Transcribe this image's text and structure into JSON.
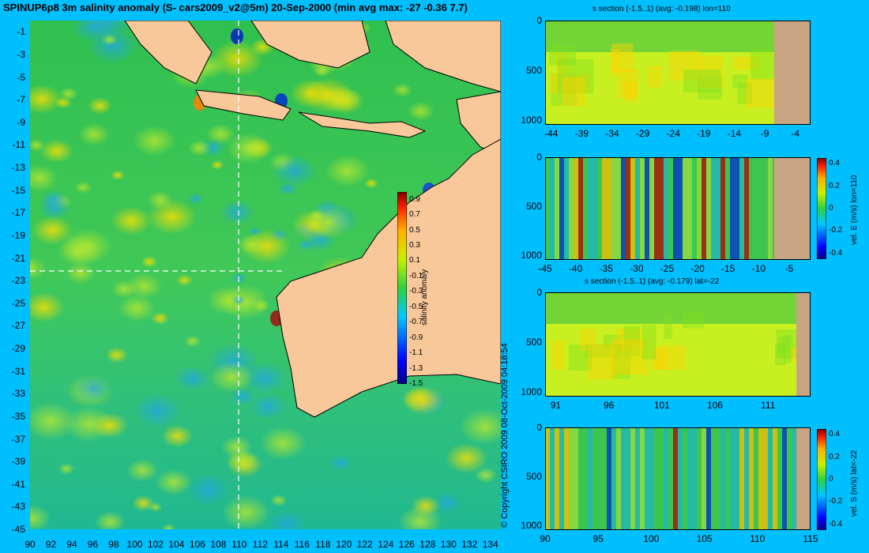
{
  "title": "SPINUP6p8 3m salinity anomaly (S- cars2009_v2@5m) 20-Sep-2000 (min avg max: -27 -0.36 7.7)",
  "copyright": "© Copyright CSIRO 2009   08-Oct-2009 04:18:54",
  "colors": {
    "background": "#00bfff",
    "land": "#f9c89a",
    "section_land": "#c8a582"
  },
  "chart_data": [
    {
      "type": "heatmap",
      "name": "map",
      "x_ticks": [
        "90",
        "92",
        "94",
        "96",
        "98",
        "100",
        "102",
        "104",
        "106",
        "108",
        "110",
        "112",
        "114",
        "116",
        "118",
        "120",
        "122",
        "124",
        "126",
        "128",
        "130",
        "132",
        "134"
      ],
      "y_ticks": [
        "-1",
        "-3",
        "-5",
        "-7",
        "-9",
        "-11",
        "-13",
        "-15",
        "-17",
        "-19",
        "-21",
        "-23",
        "-25",
        "-27",
        "-29",
        "-31",
        "-33",
        "-35",
        "-37",
        "-39",
        "-41",
        "-43",
        "-45"
      ],
      "xlim": [
        90,
        135
      ],
      "ylim": [
        -45,
        0
      ],
      "crosshair": {
        "lon": 110,
        "lat": -22
      },
      "colorbar": {
        "label": "salinity anomaly",
        "ticks": [
          "0.9",
          "0.7",
          "0.5",
          "0.3",
          "0.1",
          "-0.1",
          "-0.3",
          "-0.5",
          "-0.7",
          "-0.9",
          "-1.1",
          "-1.3",
          "-1.5"
        ],
        "range": [
          -1.5,
          1.0
        ]
      }
    },
    {
      "type": "heatmap",
      "name": "s section lon=110",
      "title": "s section (-1.5..1) (avg: -0.198) lon=110",
      "x_ticks": [
        "-44",
        "-39",
        "-34",
        "-29",
        "-24",
        "-19",
        "-14",
        "-9",
        "-4"
      ],
      "xlim": [
        -45,
        -1.5
      ],
      "y_ticks": [
        "0",
        "500",
        "1000"
      ],
      "ylim": [
        1050,
        0
      ]
    },
    {
      "type": "heatmap",
      "name": "vel E lon=110",
      "x_ticks": [
        "-45",
        "-40",
        "-35",
        "-30",
        "-25",
        "-20",
        "-15",
        "-10",
        "-5"
      ],
      "xlim": [
        -45,
        -1.5
      ],
      "y_ticks": [
        "0",
        "500",
        "1000"
      ],
      "ylim": [
        1050,
        0
      ],
      "colorbar": {
        "label": "vel. E (m/s) lon=110",
        "ticks": [
          "0.4",
          "0.2",
          "0",
          "-0.2",
          "-0.4"
        ],
        "range": [
          -0.45,
          0.45
        ]
      }
    },
    {
      "type": "heatmap",
      "name": "s section lat=-22",
      "title": "s section (-1.5..1) (avg: -0.179) lat=-22",
      "x_ticks": [
        "91",
        "96",
        "101",
        "106",
        "111"
      ],
      "xlim": [
        90,
        115
      ],
      "y_ticks": [
        "0",
        "500",
        "1000"
      ],
      "ylim": [
        1050,
        0
      ]
    },
    {
      "type": "heatmap",
      "name": "vel S lat=-22",
      "x_ticks": [
        "90",
        "95",
        "100",
        "105",
        "110",
        "115"
      ],
      "xlim": [
        90,
        115
      ],
      "y_ticks": [
        "0",
        "500",
        "1000"
      ],
      "ylim": [
        1050,
        0
      ],
      "colorbar": {
        "label": "vel. S (m/s) lat=-22",
        "ticks": [
          "0.4",
          "0.2",
          "0",
          "-0.2",
          "-0.4"
        ],
        "range": [
          -0.45,
          0.45
        ]
      }
    }
  ]
}
